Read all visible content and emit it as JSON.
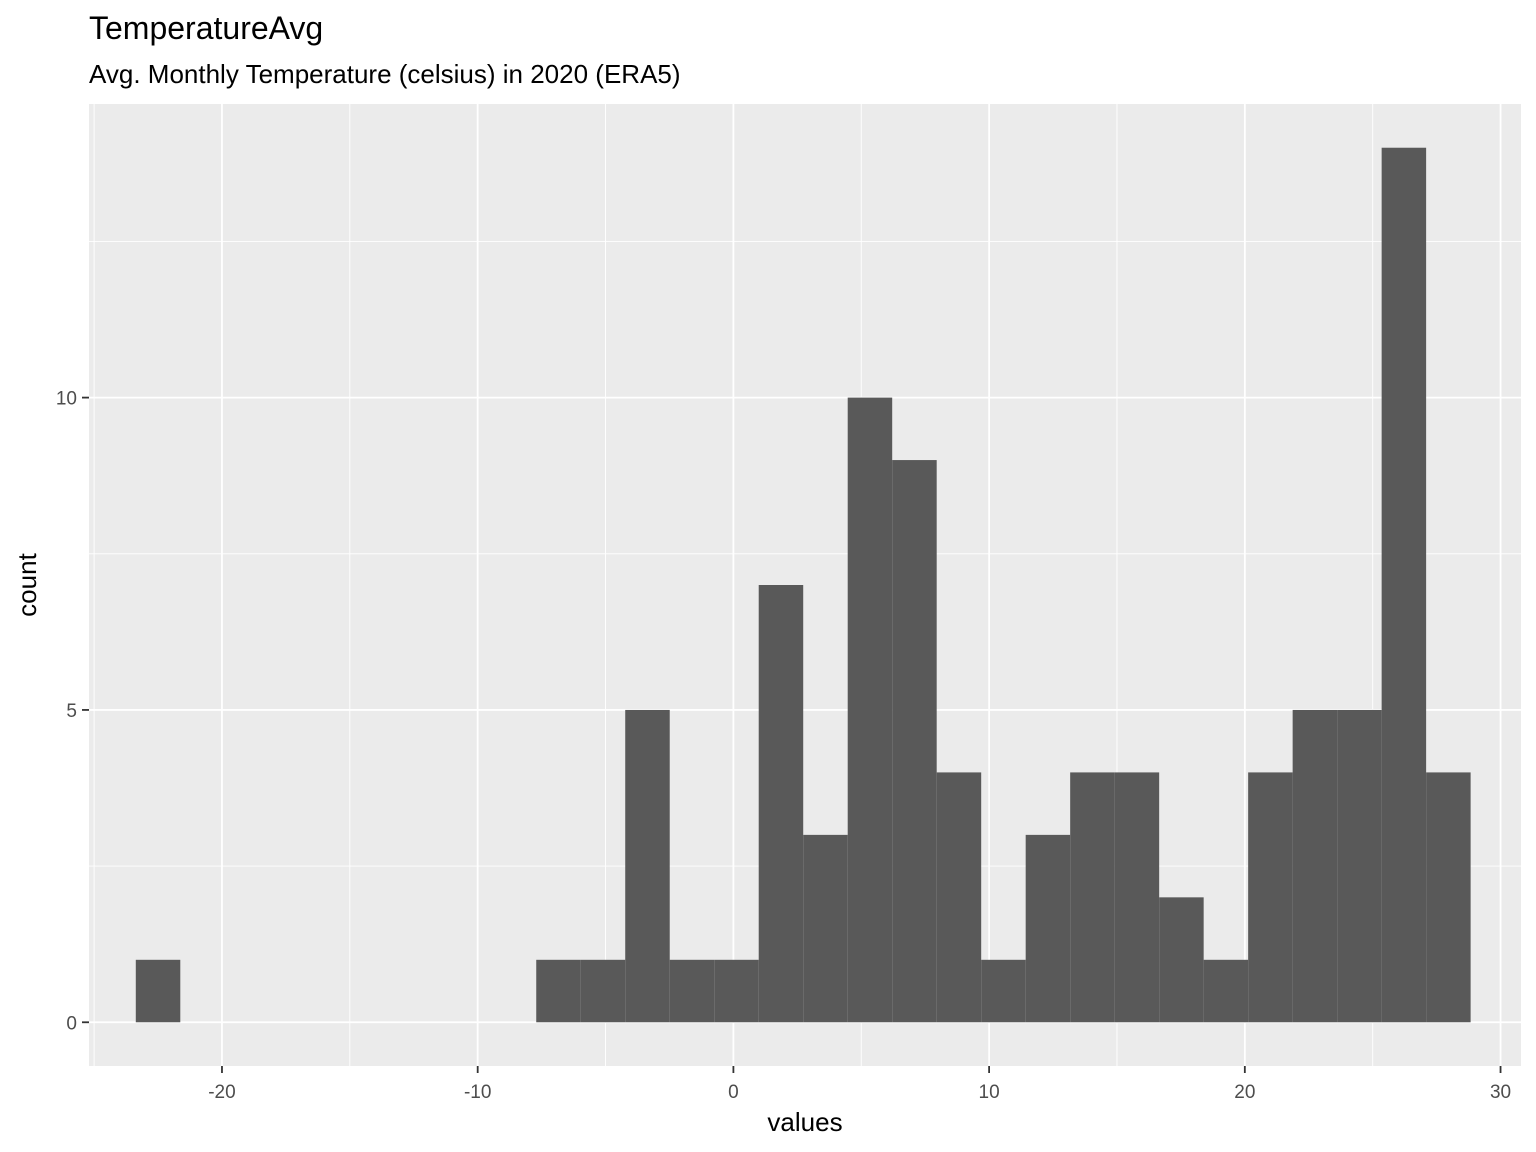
{
  "chart_data": {
    "type": "bar",
    "title": "TemperatureAvg",
    "subtitle": "Avg. Monthly Temperature (celsius) in 2020 (ERA5)",
    "xlabel": "values",
    "ylabel": "count",
    "xlim": [
      -25.2,
      30.8
    ],
    "ylim": [
      -0.7,
      14.7
    ],
    "x_ticks": [
      -20,
      -10,
      0,
      10,
      20,
      30
    ],
    "x_tick_labels": [
      "-20",
      "-10",
      "0",
      "10",
      "20",
      "30"
    ],
    "y_ticks": [
      0,
      5,
      10
    ],
    "y_tick_labels": [
      "0",
      "5",
      "10"
    ],
    "x_minor_ticks": [
      -25,
      -15,
      -5,
      5,
      15,
      25
    ],
    "y_minor_ticks": [
      2.5,
      7.5,
      12.5
    ],
    "grid": true,
    "bar_color": "#595959",
    "panel_background": "#ebebeb",
    "bin_width": 1.74,
    "bins": [
      {
        "x0": -23.37,
        "count": 1
      },
      {
        "x0": -21.63,
        "count": 0
      },
      {
        "x0": -19.89,
        "count": 0
      },
      {
        "x0": -18.15,
        "count": 0
      },
      {
        "x0": -16.41,
        "count": 0
      },
      {
        "x0": -14.67,
        "count": 0
      },
      {
        "x0": -12.93,
        "count": 0
      },
      {
        "x0": -11.19,
        "count": 0
      },
      {
        "x0": -9.45,
        "count": 0
      },
      {
        "x0": -7.71,
        "count": 1
      },
      {
        "x0": -5.97,
        "count": 1
      },
      {
        "x0": -4.23,
        "count": 5
      },
      {
        "x0": -2.49,
        "count": 1
      },
      {
        "x0": -0.75,
        "count": 1
      },
      {
        "x0": 0.99,
        "count": 7
      },
      {
        "x0": 2.73,
        "count": 3
      },
      {
        "x0": 4.47,
        "count": 10
      },
      {
        "x0": 6.21,
        "count": 9
      },
      {
        "x0": 7.95,
        "count": 4
      },
      {
        "x0": 9.69,
        "count": 1
      },
      {
        "x0": 11.43,
        "count": 3
      },
      {
        "x0": 13.17,
        "count": 4
      },
      {
        "x0": 14.91,
        "count": 4
      },
      {
        "x0": 16.65,
        "count": 2
      },
      {
        "x0": 18.39,
        "count": 1
      },
      {
        "x0": 20.13,
        "count": 4
      },
      {
        "x0": 21.87,
        "count": 5
      },
      {
        "x0": 23.61,
        "count": 5
      },
      {
        "x0": 25.35,
        "count": 14
      },
      {
        "x0": 27.09,
        "count": 4
      }
    ]
  }
}
